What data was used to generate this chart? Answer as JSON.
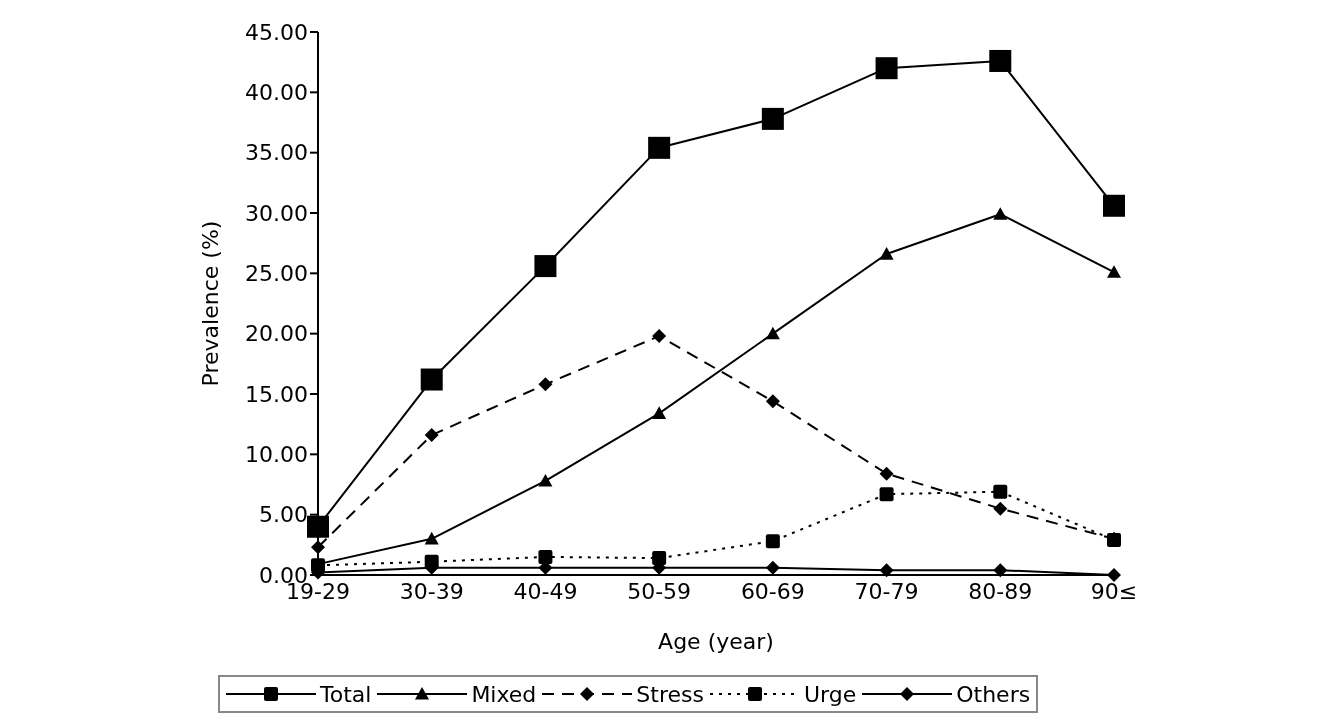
{
  "chart_data": {
    "type": "line",
    "xlabel": "Age (year)",
    "ylabel": "Prevalence (%)",
    "categories": [
      "19-29",
      "30-39",
      "40-49",
      "50-59",
      "60-69",
      "70-79",
      "80-89",
      "90≤"
    ],
    "series": [
      {
        "name": "Total",
        "color": "#000000",
        "marker": "square",
        "line_style": "solid",
        "values": [
          4.0,
          16.2,
          25.6,
          35.4,
          37.8,
          42.0,
          42.6,
          30.6
        ]
      },
      {
        "name": "Mixed",
        "color": "#000000",
        "marker": "triangle",
        "line_style": "solid",
        "values": [
          0.9,
          3.0,
          7.8,
          13.4,
          20.0,
          26.6,
          29.9,
          25.1
        ]
      },
      {
        "name": "Stress",
        "color": "#000000",
        "marker": "diamond",
        "line_style": "dashed",
        "values": [
          2.3,
          11.6,
          15.8,
          19.8,
          14.4,
          8.4,
          5.5,
          3.0
        ]
      },
      {
        "name": "Urge",
        "color": "#000000",
        "marker": "square",
        "line_style": "dotted",
        "values": [
          0.8,
          1.1,
          1.5,
          1.4,
          2.8,
          6.7,
          6.9,
          2.9
        ]
      },
      {
        "name": "Others",
        "color": "#000000",
        "marker": "diamond",
        "line_style": "solid",
        "values": [
          0.2,
          0.6,
          0.6,
          0.6,
          0.6,
          0.4,
          0.4,
          0.0
        ]
      }
    ],
    "ylim": [
      0,
      45
    ],
    "yticks": [
      {
        "value": 0,
        "label": "0.00"
      },
      {
        "value": 5,
        "label": "5.00"
      },
      {
        "value": 10,
        "label": "10.00"
      },
      {
        "value": 15,
        "label": "15.00"
      },
      {
        "value": 20,
        "label": "20.00"
      },
      {
        "value": 25,
        "label": "25.00"
      },
      {
        "value": 30,
        "label": "30.00"
      },
      {
        "value": 35,
        "label": "35.00"
      },
      {
        "value": 40,
        "label": "40.00"
      },
      {
        "value": 45,
        "label": "45.00"
      }
    ],
    "grid": false,
    "legend": "bottom"
  }
}
